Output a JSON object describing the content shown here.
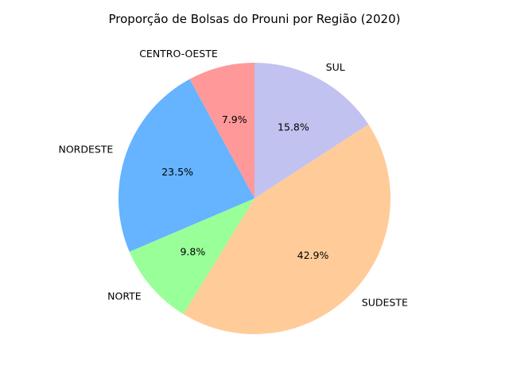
{
  "chart_data": {
    "type": "pie",
    "title": "Proporção de Bolsas do Prouni por Região (2020)",
    "categories": [
      "CENTRO-OESTE",
      "NORDESTE",
      "NORTE",
      "SUDESTE",
      "SUL"
    ],
    "values": [
      7.9,
      23.5,
      9.8,
      42.9,
      15.8
    ],
    "value_labels": [
      "7.9%",
      "23.5%",
      "9.8%",
      "42.9%",
      "15.8%"
    ],
    "colors": [
      "#ff9999",
      "#66b3ff",
      "#99ff99",
      "#ffcc99",
      "#c2c2f0"
    ],
    "start_angle_deg": 90,
    "direction": "counterclockwise",
    "legend": "none"
  }
}
